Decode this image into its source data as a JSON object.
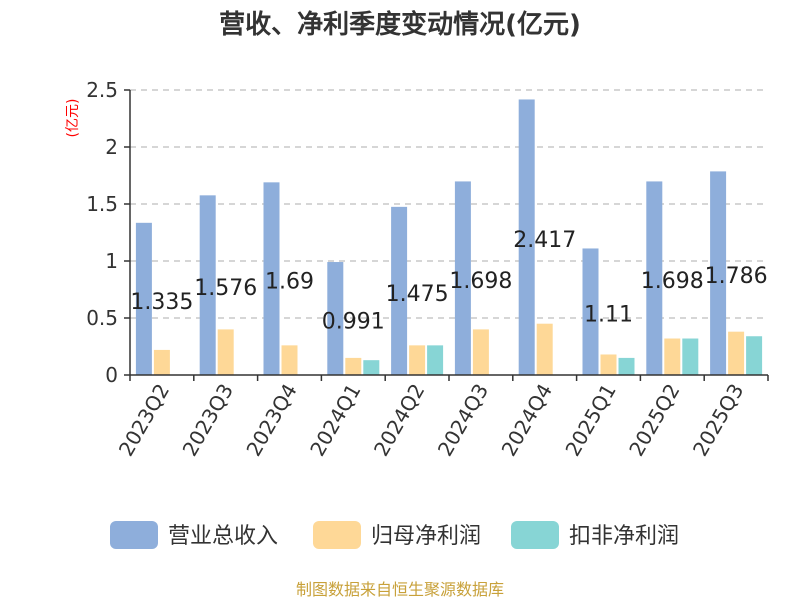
{
  "chart_data": {
    "type": "bar",
    "title": "营收、净利季度变动情况(亿元)",
    "unit_label": "(亿元)",
    "categories": [
      "2023Q2",
      "2023Q3",
      "2023Q4",
      "2024Q1",
      "2024Q2",
      "2024Q3",
      "2024Q4",
      "2025Q1",
      "2025Q2",
      "2025Q3"
    ],
    "series": [
      {
        "name": "营业总收入",
        "color": "#8eaedb",
        "values": [
          1.335,
          1.576,
          1.69,
          0.991,
          1.475,
          1.698,
          2.417,
          1.11,
          1.698,
          1.786
        ]
      },
      {
        "name": "归母净利润",
        "color": "#fed897",
        "values": [
          0.22,
          0.4,
          0.26,
          0.15,
          0.26,
          0.4,
          0.45,
          0.18,
          0.32,
          0.38
        ]
      },
      {
        "name": "扣非净利润",
        "color": "#87d5d5",
        "values": [
          null,
          null,
          null,
          0.13,
          0.26,
          null,
          null,
          0.15,
          0.32,
          0.34
        ]
      }
    ],
    "data_labels": [
      "1.335",
      "1.576",
      "1.69",
      "0.991",
      "1.475",
      "1.698",
      "2.417",
      "1.11",
      "1.698",
      "1.786"
    ],
    "y_ticks": [
      "0",
      "0.5",
      "1",
      "1.5",
      "2",
      "2.5"
    ],
    "ylim": [
      0,
      2.5
    ],
    "grid": true,
    "legend_position": "bottom"
  },
  "source": "制图数据来自恒生聚源数据库"
}
